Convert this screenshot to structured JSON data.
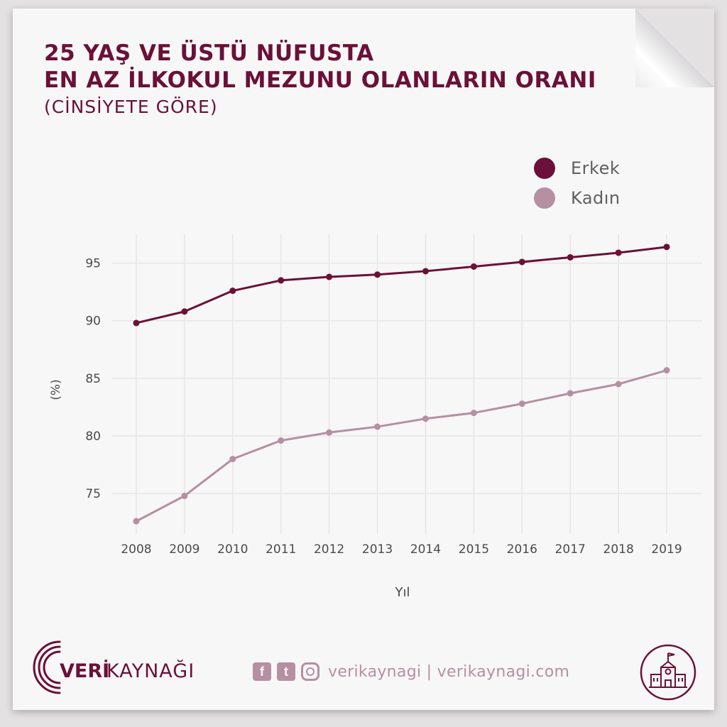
{
  "header": {
    "title_line1": "25 YAŞ VE ÜSTÜ NÜFUSTA",
    "title_line2": "EN AZ İLKOKUL MEZUNU OLANLARIN ORANI",
    "subtitle": "(CİNSİYETE GÖRE)"
  },
  "colors": {
    "erkek": "#6b1038",
    "kadin": "#b58fa2",
    "grid": "#e6e6e6",
    "axis_text": "#4a4a4a"
  },
  "chart_data": {
    "type": "line",
    "xlabel": "Yıl",
    "ylabel": "(%)",
    "x": [
      2008,
      2009,
      2010,
      2011,
      2012,
      2013,
      2014,
      2015,
      2016,
      2017,
      2018,
      2019
    ],
    "yticks": [
      75,
      80,
      85,
      90,
      95
    ],
    "ylim": [
      71.5,
      97.5
    ],
    "xlim": [
      2007.5,
      2019.75
    ],
    "grid": true,
    "legend_placement": "top-right",
    "series": [
      {
        "name": "Erkek",
        "values": [
          89.8,
          90.8,
          92.6,
          93.5,
          93.8,
          94.0,
          94.3,
          94.7,
          95.1,
          95.5,
          95.9,
          96.4
        ]
      },
      {
        "name": "Kadın",
        "values": [
          72.6,
          74.8,
          78.0,
          79.6,
          80.3,
          80.8,
          81.5,
          82.0,
          82.8,
          83.7,
          84.5,
          85.7
        ]
      }
    ]
  },
  "footer": {
    "brand_bold": "VERİ",
    "brand_light": "KAYNAĞI",
    "social_facebook": "f",
    "social_twitter": "t",
    "handle": "verikaynagi | verikaynagi.com",
    "icon_name": "school-building-icon"
  }
}
